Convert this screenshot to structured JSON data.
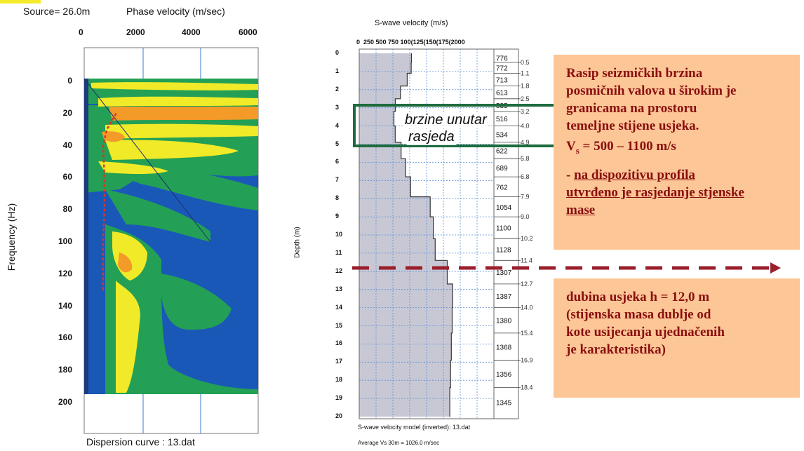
{
  "left_chart": {
    "source_label": "Source= 26.0m",
    "title": "Phase velocity (m/sec)",
    "ylabel": "Frequency (Hz)",
    "caption": "Dispersion curve : 13.dat",
    "x_ticks": [
      "0",
      "2000",
      "4000",
      "6000"
    ],
    "y_ticks": [
      "0",
      "20",
      "40",
      "60",
      "80",
      "100",
      "120",
      "140",
      "160",
      "180",
      "200"
    ],
    "colors": {
      "background": "#1a58b8",
      "green": "#23a055",
      "yellow": "#f0ea28",
      "orange": "#f39a28",
      "curve": "#d8352a"
    }
  },
  "right_chart": {
    "title": "S-wave velocity (m/s)",
    "x_ticks_text": "0  250 500 750 100(125(150(175(2000",
    "ylabel": "Depth (m)",
    "y_ticks": [
      "0",
      "1",
      "2",
      "3",
      "4",
      "5",
      "6",
      "7",
      "8",
      "9",
      "10",
      "11",
      "12",
      "13",
      "14",
      "15",
      "16",
      "17",
      "18",
      "19",
      "20"
    ],
    "caption1": "S-wave velocity model (inverted): 13.dat",
    "caption2": "Average Vs 30m = 1026.0 m/sec",
    "annotation_line1": "brzine unutar",
    "annotation_line2": "rasjeda"
  },
  "chart_data": {
    "type": "line",
    "title": "S-wave velocity (m/s)",
    "xlabel": "",
    "ylabel": "Depth (m)",
    "xlim": [
      0,
      2000
    ],
    "ylim": [
      20,
      0
    ],
    "grid": true,
    "layers": [
      {
        "depth_top": 0.0,
        "depth_mid": 0.5,
        "vs": 776
      },
      {
        "depth_top": 0.5,
        "depth_mid": 1.1,
        "vs": 772
      },
      {
        "depth_top": 1.1,
        "depth_mid": 1.8,
        "vs": 713
      },
      {
        "depth_top": 1.8,
        "depth_mid": 2.5,
        "vs": 613
      },
      {
        "depth_top": 2.5,
        "depth_mid": 3.2,
        "vs": 535
      },
      {
        "depth_top": 3.2,
        "depth_mid": 4.0,
        "vs": 516
      },
      {
        "depth_top": 4.0,
        "depth_mid": 4.9,
        "vs": 534
      },
      {
        "depth_top": 4.9,
        "depth_mid": 5.8,
        "vs": 622
      },
      {
        "depth_top": 5.8,
        "depth_mid": 6.8,
        "vs": 689
      },
      {
        "depth_top": 6.8,
        "depth_mid": 7.9,
        "vs": 762
      },
      {
        "depth_top": 7.9,
        "depth_mid": 9.0,
        "vs": 1054
      },
      {
        "depth_top": 9.0,
        "depth_mid": 10.2,
        "vs": 1100
      },
      {
        "depth_top": 10.2,
        "depth_mid": 11.4,
        "vs": 1128
      },
      {
        "depth_top": 11.4,
        "depth_mid": 12.7,
        "vs": 1307
      },
      {
        "depth_top": 12.7,
        "depth_mid": 14.0,
        "vs": 1387
      },
      {
        "depth_top": 14.0,
        "depth_mid": 15.4,
        "vs": 1380
      },
      {
        "depth_top": 15.4,
        "depth_mid": 16.9,
        "vs": 1368
      },
      {
        "depth_top": 16.9,
        "depth_mid": 18.4,
        "vs": 1356
      },
      {
        "depth_top": 18.4,
        "depth_mid": 20.0,
        "vs": 1345
      }
    ],
    "boundary_labels": [
      "0.5",
      "1.1",
      "1.8",
      "2.5",
      "3.2",
      "4.0",
      "4.9",
      "5.8",
      "6.8",
      "7.9",
      "9.0",
      "10.2",
      "11.4",
      "12.7",
      "14.0",
      "15.4",
      "16.9",
      "18.4"
    ],
    "dispersion_curve": {
      "xlim": [
        0,
        6000
      ],
      "ylim": [
        220,
        -20
      ],
      "points": [
        {
          "velocity": 1100,
          "frequency": 20
        },
        {
          "velocity": 780,
          "frequency": 30
        },
        {
          "velocity": 650,
          "frequency": 40
        },
        {
          "velocity": 700,
          "frequency": 60
        },
        {
          "velocity": 700,
          "frequency": 80
        },
        {
          "velocity": 650,
          "frequency": 100
        },
        {
          "velocity": 650,
          "frequency": 130
        }
      ]
    }
  },
  "text_box_1": {
    "line1": "Rasip seizmičkih brzina",
    "line2": "posmičnih valova u širokim je",
    "line3": "granicama na prostoru",
    "line4": "temeljne stijene usjeka.",
    "vs_symbol": "V",
    "vs_sub": "s",
    "vs_value": " = 500 – 1100 m/s",
    "bullet_prefix": "- ",
    "bullet_line1": "na dispozitivu profila",
    "bullet_line2": "utvrđeno je rasjedanje stjenske",
    "bullet_line3": "mase"
  },
  "text_box_2": {
    "line1": "dubina usjeka h = 12,0 m",
    "line2": "(stijenska masa dublje od",
    "line3": "kote usijecanja  ujednačenih",
    "line4": "je karakteristika)"
  }
}
